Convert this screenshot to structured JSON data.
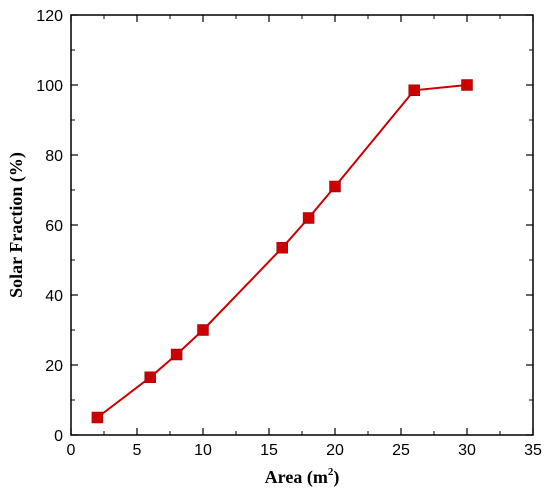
{
  "chart_data": {
    "type": "line",
    "xlabel": "Area (m",
    "xlabel_sup": "2",
    "xlabel_end": ")",
    "ylabel": "Solar Fraction (%)",
    "xlim": [
      0,
      35
    ],
    "ylim": [
      0,
      120
    ],
    "xticks": [
      0,
      5,
      10,
      15,
      20,
      25,
      30,
      35
    ],
    "yticks": [
      0,
      20,
      40,
      60,
      80,
      100,
      120
    ],
    "grid": false,
    "marker": "square",
    "series": [
      {
        "color": "#cc0000",
        "x": [
          2,
          6,
          8,
          10,
          16,
          18,
          20,
          26,
          30
        ],
        "y": [
          5,
          16.5,
          23,
          30,
          53.5,
          62,
          71,
          98.5,
          100
        ]
      }
    ]
  }
}
